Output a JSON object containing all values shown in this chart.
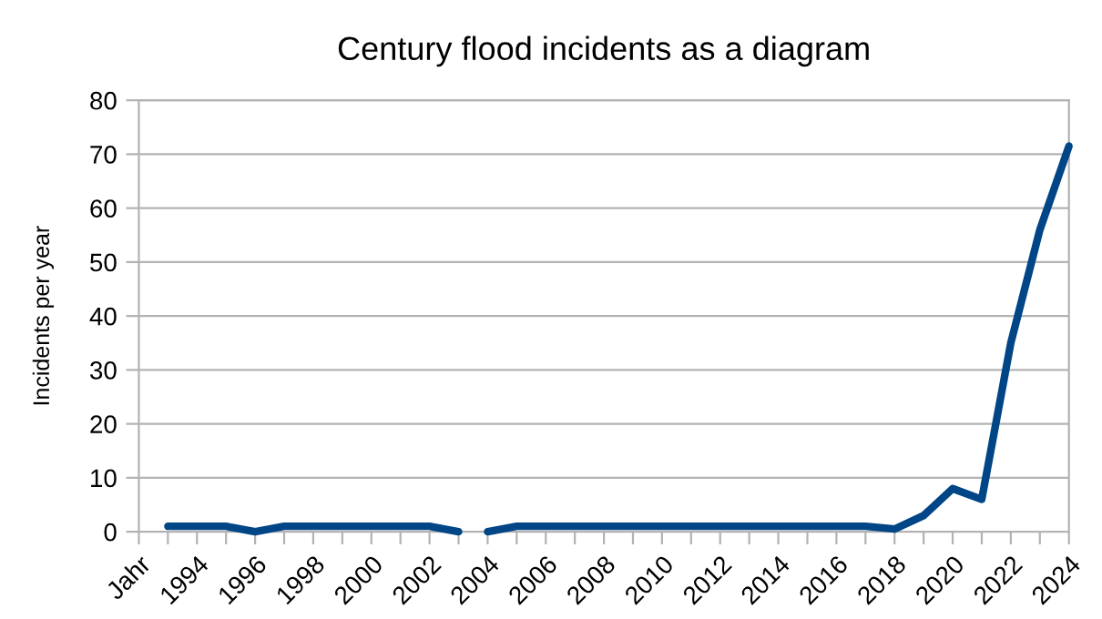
{
  "chart_data": {
    "type": "line",
    "title": "Century flood incidents as a diagram",
    "ylabel": "Incidents per year",
    "categories": [
      "Jahr",
      null,
      "1994",
      null,
      "1996",
      null,
      "1998",
      null,
      "2000",
      null,
      "2002",
      null,
      "2004",
      null,
      "2006",
      null,
      "2008",
      null,
      "2010",
      null,
      "2012",
      null,
      "2014",
      null,
      "2016",
      null,
      "2018",
      null,
      "2020",
      null,
      "2022",
      null,
      "2024"
    ],
    "series": [
      {
        "color": "#004586",
        "values": [
          null,
          1,
          1,
          1,
          0,
          1,
          1,
          1,
          1,
          1,
          1,
          0,
          null,
          null,
          null,
          null,
          null,
          null,
          null,
          null,
          null,
          null,
          null,
          null,
          null,
          null,
          null,
          null,
          null,
          null,
          null,
          null,
          null
        ]
      },
      {
        "color": "#004586",
        "values": [
          null,
          null,
          null,
          null,
          null,
          null,
          null,
          null,
          null,
          null,
          null,
          null,
          0,
          1,
          1,
          1,
          1,
          1,
          1,
          1,
          1,
          1,
          1,
          1,
          1,
          1,
          0.5,
          3,
          8,
          6,
          35,
          56,
          71.5
        ]
      }
    ],
    "ylim": [
      0,
      80
    ],
    "yticks": [
      0,
      10,
      20,
      30,
      40,
      50,
      60,
      70,
      80
    ],
    "grid": "y",
    "marker": "none",
    "line_style": "solid"
  }
}
